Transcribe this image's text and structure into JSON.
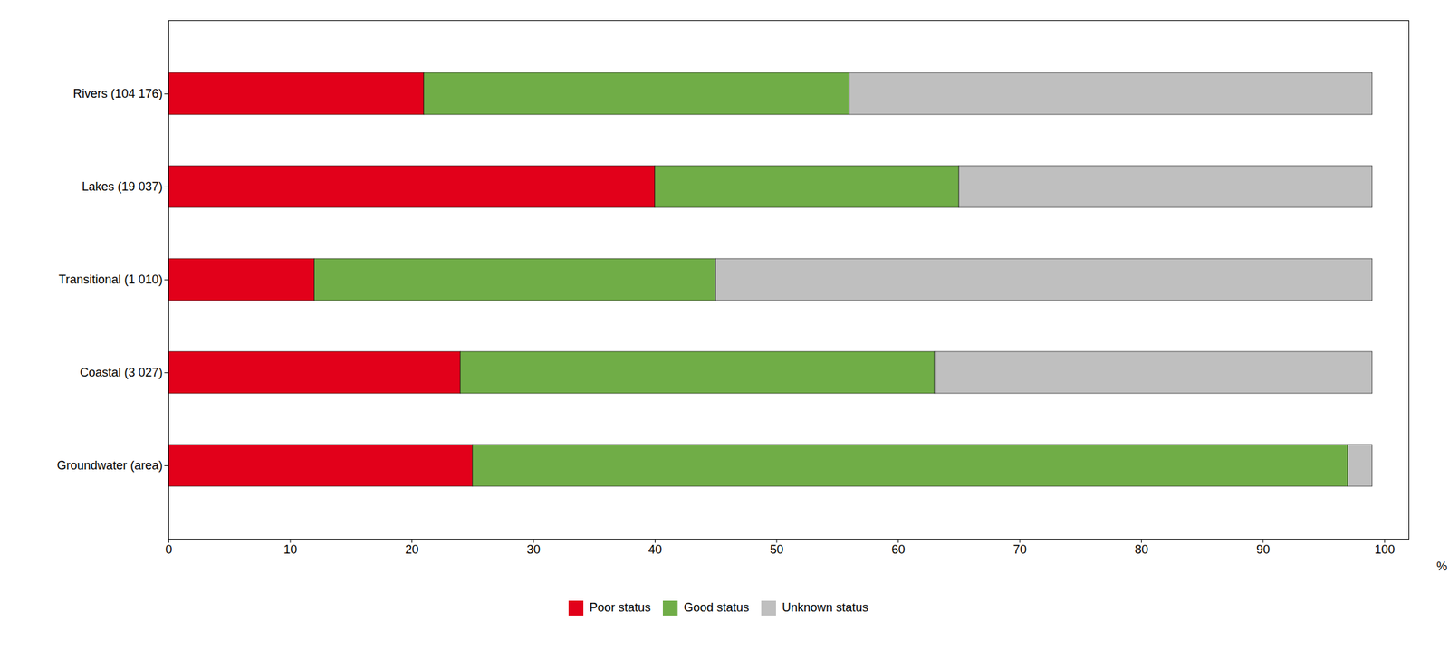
{
  "chart_data": {
    "type": "bar",
    "orientation": "horizontal",
    "stacked": true,
    "categories": [
      "Groundwater (area)",
      "Coastal (3 027)",
      "Transitional (1 010)",
      "Lakes (19 037)",
      "Rivers (104 176)"
    ],
    "series": [
      {
        "name": "Poor status",
        "color": "#e2001a",
        "values": [
          25,
          24,
          12,
          40,
          21
        ]
      },
      {
        "name": "Good status",
        "color": "#70ad47",
        "values": [
          72,
          39,
          33,
          25,
          35
        ]
      },
      {
        "name": "Unknown status",
        "color": "#bfbfbf",
        "values": [
          2,
          36,
          54,
          34,
          43
        ]
      }
    ],
    "xlabel": "%",
    "xlim": [
      0,
      102
    ],
    "xticks": [
      0,
      10,
      20,
      30,
      40,
      50,
      60,
      70,
      80,
      90,
      100
    ],
    "grid": false,
    "legend": "bottom"
  }
}
